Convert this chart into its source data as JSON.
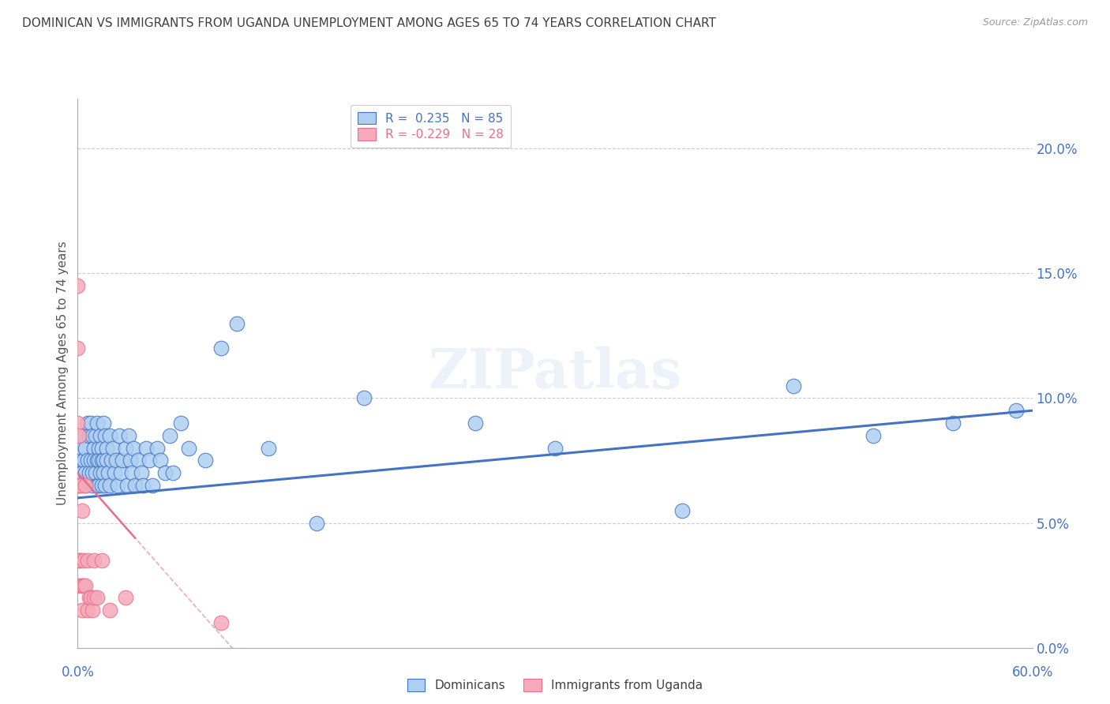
{
  "title": "DOMINICAN VS IMMIGRANTS FROM UGANDA UNEMPLOYMENT AMONG AGES 65 TO 74 YEARS CORRELATION CHART",
  "source": "Source: ZipAtlas.com",
  "ylabel": "Unemployment Among Ages 65 to 74 years",
  "ylabel_right_ticks": [
    "0.0%",
    "5.0%",
    "10.0%",
    "15.0%",
    "20.0%"
  ],
  "legend_blue": "R =  0.235   N = 85",
  "legend_pink": "R = -0.229   N = 28",
  "legend_label_blue": "Dominicans",
  "legend_label_pink": "Immigrants from Uganda",
  "watermark": "ZIPatlas",
  "blue_color": "#aecff0",
  "pink_color": "#f5aabb",
  "blue_line_color": "#4472c4",
  "pink_line_color": "#e8708a",
  "title_color": "#404040",
  "right_axis_color": "#4472c4",
  "bottom_label_color": "#4472c4",
  "background_color": "#ffffff",
  "xlim": [
    0.0,
    0.6
  ],
  "ylim": [
    0.0,
    0.22
  ],
  "ytick_vals": [
    0.0,
    0.05,
    0.1,
    0.15,
    0.2
  ],
  "xtick_show": [
    0.0,
    0.6
  ],
  "blue_scatter_x": [
    0.001,
    0.002,
    0.002,
    0.003,
    0.003,
    0.004,
    0.004,
    0.005,
    0.005,
    0.005,
    0.006,
    0.006,
    0.007,
    0.007,
    0.008,
    0.008,
    0.009,
    0.009,
    0.009,
    0.01,
    0.01,
    0.011,
    0.011,
    0.012,
    0.012,
    0.012,
    0.013,
    0.013,
    0.013,
    0.014,
    0.014,
    0.015,
    0.015,
    0.015,
    0.016,
    0.016,
    0.016,
    0.017,
    0.017,
    0.018,
    0.018,
    0.019,
    0.02,
    0.02,
    0.021,
    0.022,
    0.023,
    0.024,
    0.025,
    0.026,
    0.027,
    0.028,
    0.03,
    0.031,
    0.032,
    0.033,
    0.034,
    0.035,
    0.036,
    0.038,
    0.04,
    0.041,
    0.043,
    0.045,
    0.047,
    0.05,
    0.052,
    0.055,
    0.058,
    0.06,
    0.065,
    0.07,
    0.08,
    0.09,
    0.1,
    0.12,
    0.15,
    0.18,
    0.25,
    0.3,
    0.38,
    0.45,
    0.5,
    0.55,
    0.59
  ],
  "blue_scatter_y": [
    0.065,
    0.075,
    0.07,
    0.08,
    0.07,
    0.085,
    0.075,
    0.065,
    0.08,
    0.07,
    0.09,
    0.075,
    0.085,
    0.07,
    0.09,
    0.075,
    0.065,
    0.085,
    0.07,
    0.08,
    0.075,
    0.085,
    0.07,
    0.09,
    0.075,
    0.065,
    0.08,
    0.075,
    0.065,
    0.085,
    0.07,
    0.08,
    0.075,
    0.065,
    0.09,
    0.075,
    0.07,
    0.085,
    0.065,
    0.08,
    0.075,
    0.07,
    0.065,
    0.085,
    0.075,
    0.08,
    0.07,
    0.075,
    0.065,
    0.085,
    0.07,
    0.075,
    0.08,
    0.065,
    0.085,
    0.075,
    0.07,
    0.08,
    0.065,
    0.075,
    0.07,
    0.065,
    0.08,
    0.075,
    0.065,
    0.08,
    0.075,
    0.07,
    0.085,
    0.07,
    0.09,
    0.08,
    0.075,
    0.12,
    0.13,
    0.08,
    0.05,
    0.1,
    0.09,
    0.08,
    0.055,
    0.105,
    0.085,
    0.09,
    0.095
  ],
  "pink_scatter_x": [
    0.0,
    0.0,
    0.0,
    0.0,
    0.001,
    0.001,
    0.001,
    0.002,
    0.002,
    0.003,
    0.003,
    0.003,
    0.004,
    0.004,
    0.005,
    0.005,
    0.006,
    0.006,
    0.007,
    0.008,
    0.009,
    0.01,
    0.01,
    0.012,
    0.015,
    0.02,
    0.03,
    0.09
  ],
  "pink_scatter_y": [
    0.145,
    0.12,
    0.09,
    0.065,
    0.085,
    0.035,
    0.025,
    0.065,
    0.035,
    0.055,
    0.025,
    0.015,
    0.035,
    0.025,
    0.065,
    0.025,
    0.035,
    0.015,
    0.02,
    0.02,
    0.015,
    0.035,
    0.02,
    0.02,
    0.035,
    0.015,
    0.02,
    0.01
  ],
  "blue_trend_x": [
    0.0,
    0.6
  ],
  "blue_trend_y": [
    0.06,
    0.095
  ],
  "pink_trend_x": [
    0.0,
    0.09
  ],
  "pink_trend_y": [
    0.07,
    0.005
  ]
}
